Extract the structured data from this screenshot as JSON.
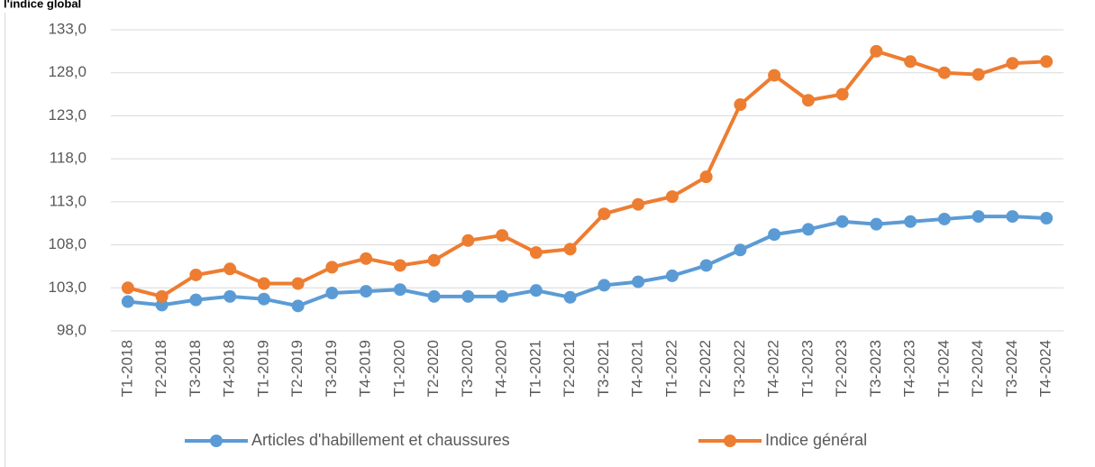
{
  "chart_data": {
    "type": "line",
    "title": "l'indice global",
    "categories": [
      "T1-2018",
      "T2-2018",
      "T3-2018",
      "T4-2018",
      "T1-2019",
      "T2-2019",
      "T3-2019",
      "T4-2019",
      "T1-2020",
      "T2-2020",
      "T3-2020",
      "T4-2020",
      "T1-2021",
      "T2-2021",
      "T3-2021",
      "T4-2021",
      "T1-2022",
      "T2-2022",
      "T3-2022",
      "T4-2022",
      "T1-2023",
      "T2-2023",
      "T3-2023",
      "T4-2023",
      "T1-2024",
      "T2-2024",
      "T3-2024",
      "T4-2024"
    ],
    "series": [
      {
        "name": "Articles d'habillement et chaussures",
        "color": "#5b9bd5",
        "values": [
          101.4,
          101.0,
          101.6,
          102.0,
          101.7,
          100.9,
          102.4,
          102.6,
          102.8,
          102.0,
          102.0,
          102.0,
          102.7,
          101.9,
          103.3,
          103.7,
          104.4,
          105.6,
          107.4,
          109.2,
          109.8,
          110.7,
          110.4,
          110.7,
          111.0,
          111.3,
          111.3,
          111.1
        ]
      },
      {
        "name": "Indice général",
        "color": "#ed7d31",
        "values": [
          103.0,
          102.0,
          104.5,
          105.2,
          103.5,
          103.5,
          105.4,
          106.4,
          105.6,
          106.2,
          108.5,
          109.1,
          107.1,
          107.5,
          111.6,
          112.7,
          113.6,
          115.9,
          124.3,
          127.7,
          124.8,
          125.5,
          130.5,
          129.3,
          128.0,
          127.8,
          129.1,
          129.3
        ]
      }
    ],
    "ylim": [
      98,
      133
    ],
    "yticks": [
      {
        "value": 98,
        "label": "98,0"
      },
      {
        "value": 103,
        "label": "103,0"
      },
      {
        "value": 108,
        "label": "108,0"
      },
      {
        "value": 113,
        "label": "113,0"
      },
      {
        "value": 118,
        "label": "118,0"
      },
      {
        "value": 123,
        "label": "123,0"
      },
      {
        "value": 128,
        "label": "128,0"
      },
      {
        "value": 133,
        "label": "133,0"
      }
    ],
    "grid": true,
    "legend": "bottom"
  }
}
